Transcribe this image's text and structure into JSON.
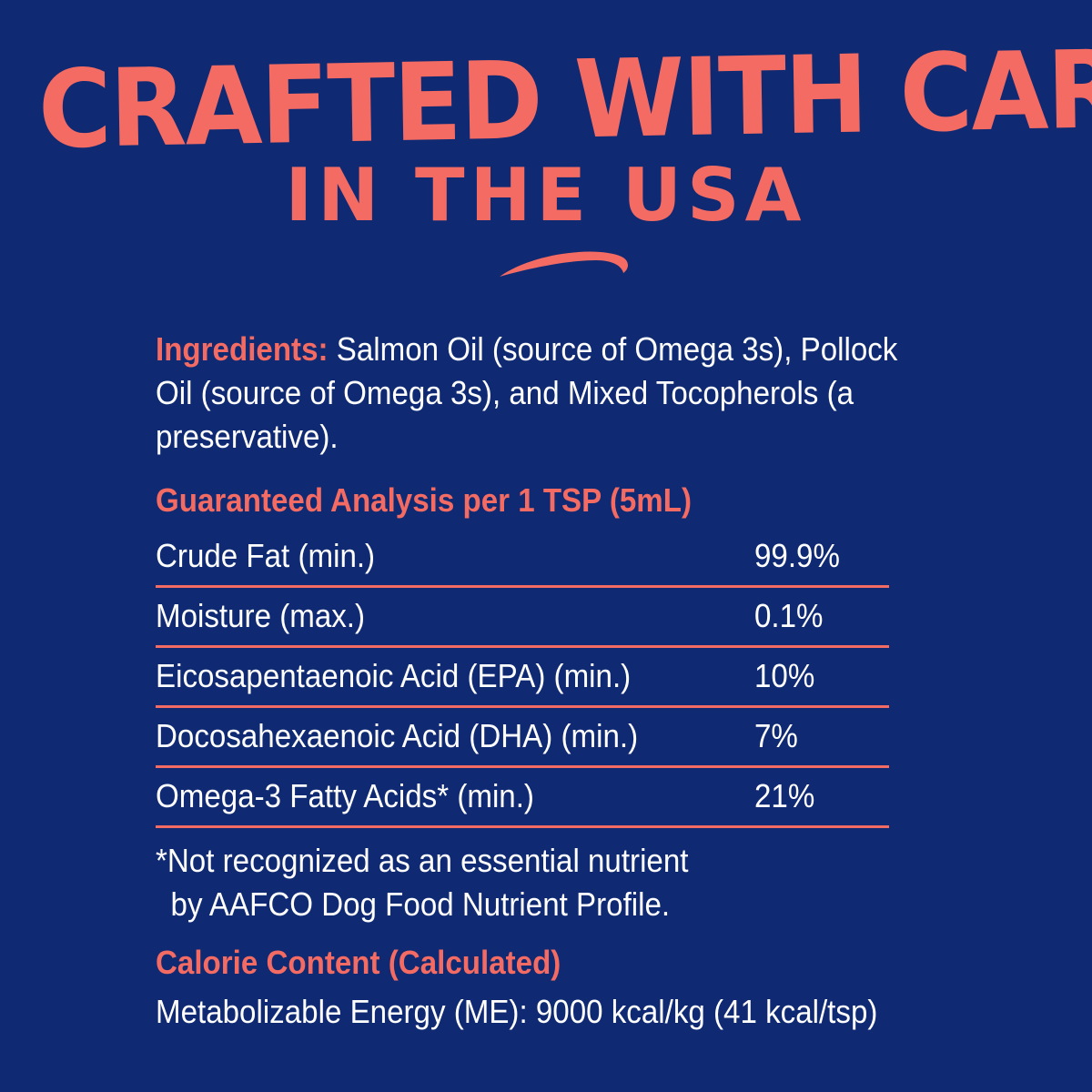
{
  "headline": {
    "line1": "CRAFTED WITH CARE",
    "line2": "IN THE USA"
  },
  "ingredients": {
    "label": "Ingredients:",
    "text": " Salmon Oil (source of Omega 3s), Pollock Oil (source of Omega 3s), and Mixed Tocopherols (a preservative)."
  },
  "analysis": {
    "heading": "Guaranteed Analysis per 1 TSP (5mL)",
    "rows": [
      {
        "nutrient": "Crude Fat (min.)",
        "amount": "99.9%"
      },
      {
        "nutrient": "Moisture (max.)",
        "amount": "0.1%"
      },
      {
        "nutrient": "Eicosapentaenoic Acid (EPA) (min.)",
        "amount": "10%"
      },
      {
        "nutrient": "Docosahexaenoic Acid (DHA) (min.)",
        "amount": "7%"
      },
      {
        "nutrient": "Omega-3 Fatty Acids* (min.)",
        "amount": "21%"
      }
    ]
  },
  "footnote": {
    "line1": "*Not recognized as an essential nutrient",
    "line2": "by AAFCO Dog Food Nutrient Profile."
  },
  "calorie": {
    "heading": "Calorie Content (Calculated)",
    "text": "Metabolizable Energy (ME): 9000 kcal/kg (41 kcal/tsp)"
  },
  "colors": {
    "background": "#0f2a72",
    "accent": "#f36b63",
    "text": "#ffffff"
  }
}
